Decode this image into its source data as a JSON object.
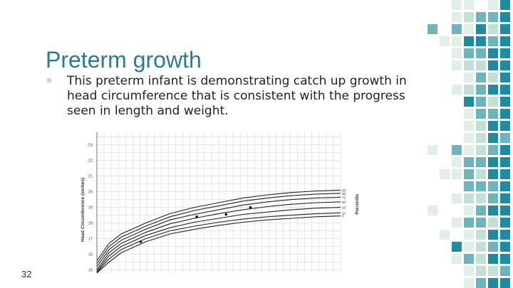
{
  "slide": {
    "title": "Preterm growth",
    "body": "This preterm infant is demonstrating catch up growth in head circumference that is consistent with the progress seen in length and weight.",
    "page_number": "32"
  },
  "colors": {
    "title": "#2c7a8a",
    "accent_dark": "#1f8aa0",
    "accent_mid": "#6fb3bc",
    "accent_light": "#c2e0d5",
    "accent_pale": "#e2efe9"
  },
  "chart_data": {
    "type": "line",
    "ylabel": "Head Circumference (inches)",
    "right_label": "Percentile",
    "yticks": [
      "15",
      "16",
      "17",
      "18",
      "19",
      "20",
      "21",
      "22",
      "23"
    ],
    "ylim": [
      14.8,
      23.8
    ],
    "xlim": [
      0,
      100
    ],
    "percentiles": [
      "95",
      "90",
      "75",
      "50",
      "25",
      "10",
      "5"
    ],
    "series": [
      {
        "name": "95",
        "x": [
          0,
          5,
          10,
          20,
          30,
          40,
          50,
          60,
          70,
          80,
          90,
          100
        ],
        "values": [
          15.6,
          16.7,
          17.3,
          18.0,
          18.6,
          19.0,
          19.3,
          19.6,
          19.8,
          19.95,
          20.05,
          20.1
        ]
      },
      {
        "name": "90",
        "x": [
          0,
          5,
          10,
          20,
          30,
          40,
          50,
          60,
          70,
          80,
          90,
          100
        ],
        "values": [
          15.4,
          16.5,
          17.1,
          17.8,
          18.4,
          18.8,
          19.1,
          19.4,
          19.6,
          19.75,
          19.85,
          19.9
        ]
      },
      {
        "name": "75",
        "x": [
          0,
          5,
          10,
          20,
          30,
          40,
          50,
          60,
          70,
          80,
          90,
          100
        ],
        "values": [
          15.2,
          16.3,
          16.9,
          17.6,
          18.2,
          18.55,
          18.85,
          19.15,
          19.35,
          19.5,
          19.6,
          19.65
        ]
      },
      {
        "name": "50",
        "x": [
          0,
          5,
          10,
          20,
          30,
          40,
          50,
          60,
          70,
          80,
          90,
          100
        ],
        "values": [
          15.0,
          16.1,
          16.7,
          17.4,
          17.95,
          18.3,
          18.6,
          18.85,
          19.05,
          19.2,
          19.3,
          19.35
        ]
      },
      {
        "name": "25",
        "x": [
          0,
          5,
          10,
          20,
          30,
          40,
          50,
          60,
          70,
          80,
          90,
          100
        ],
        "values": [
          14.9,
          15.9,
          16.5,
          17.2,
          17.7,
          18.05,
          18.3,
          18.55,
          18.7,
          18.85,
          18.95,
          19.0
        ]
      },
      {
        "name": "10",
        "x": [
          0,
          5,
          10,
          20,
          30,
          40,
          50,
          60,
          70,
          80,
          90,
          100
        ],
        "values": [
          14.85,
          15.7,
          16.3,
          17.0,
          17.5,
          17.8,
          18.05,
          18.25,
          18.4,
          18.5,
          18.6,
          18.65
        ]
      },
      {
        "name": "5",
        "x": [
          0,
          5,
          10,
          20,
          30,
          40,
          50,
          60,
          70,
          80,
          90,
          100
        ],
        "values": [
          14.8,
          15.5,
          16.1,
          16.8,
          17.3,
          17.6,
          17.85,
          18.05,
          18.2,
          18.3,
          18.4,
          18.45
        ]
      }
    ],
    "points": [
      {
        "x": 18,
        "y": 16.8
      },
      {
        "x": 41,
        "y": 18.4
      },
      {
        "x": 53,
        "y": 18.55
      },
      {
        "x": 63,
        "y": 19.0
      }
    ]
  },
  "mosaic": {
    "col_x": [
      600,
      617,
      634,
      651,
      668,
      685,
      702
    ],
    "row_y": [
      0,
      17,
      34,
      51,
      68,
      85,
      102,
      119,
      136,
      153,
      170,
      187,
      204,
      221,
      238,
      255,
      272,
      289,
      306,
      323,
      340,
      357,
      374,
      391
    ],
    "rows": [
      "..pp.pd",
      "..plmmd",
      "m.mpdld",
      ".ppddmd",
      "..pmmdd",
      "..plldd",
      "...pmld",
      "..plmdd",
      "...dmld",
      "...pmmd",
      "...pldd",
      "...pldm",
      "p.mplmd",
      "..pmmdd",
      ".ppmldd",
      "...mmmd",
      "..pllmd",
      "p..pmdd",
      "..pmmld",
      ".p.pldd",
      "..dplmd",
      "..pmldd",
      "...pllm",
      "...pmdd"
    ]
  }
}
